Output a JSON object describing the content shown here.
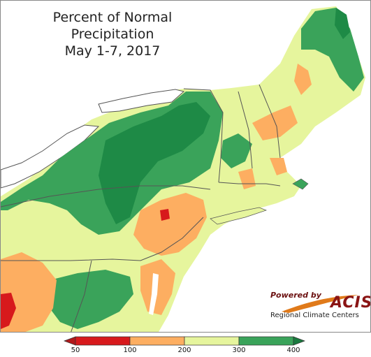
{
  "title": {
    "line1": "Percent of Normal Precipitation",
    "line2": "May 1-7, 2017"
  },
  "logo": {
    "powered_by": "Powered by",
    "brand": "ACIS",
    "org": "Regional Climate Centers"
  },
  "legend": {
    "ticks": [
      "50",
      "100",
      "200",
      "300",
      "400"
    ],
    "bins": [
      {
        "range": "50-100",
        "color": "#d7191c"
      },
      {
        "range": "100-200",
        "color": "#fdae61"
      },
      {
        "range": "200-300",
        "color": "#e6f59d"
      },
      {
        "range": "300-400",
        "color": "#3aa35a"
      }
    ],
    "extend_low_color": "#b2181b",
    "extend_high_color": "#1a7a3f"
  },
  "palette": {
    "water": "#ffffff",
    "green_dark": "#1e8a46",
    "green": "#3aa35a",
    "yellow": "#e6f59d",
    "orange": "#fdae61",
    "red": "#d7191c",
    "boundary": "#555555"
  }
}
